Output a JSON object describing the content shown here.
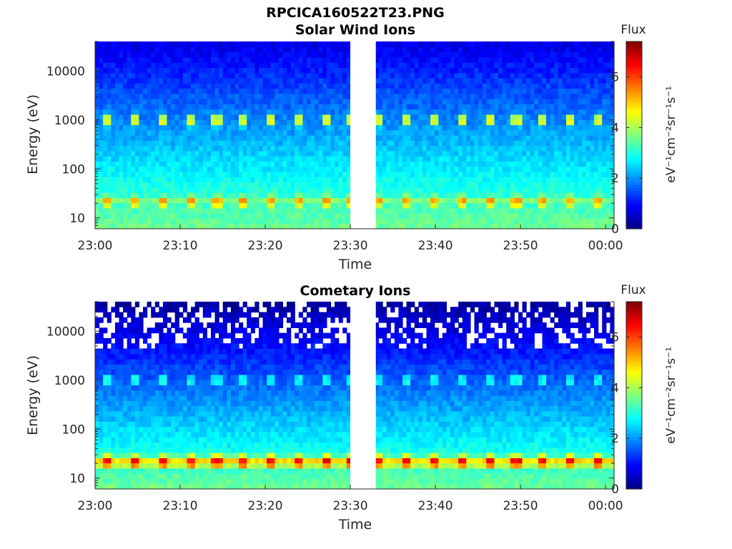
{
  "figure_title": "RPCICA160522T23.PNG",
  "chart_data": [
    {
      "type": "heatmap",
      "title": "Solar Wind Ions",
      "xlabel": "Time",
      "ylabel": "Energy (eV)",
      "y_scale": "log",
      "ylim": [
        6,
        40000
      ],
      "xlim": [
        "23:00",
        "00:01"
      ],
      "x_ticks": [
        "23:00",
        "23:10",
        "23:20",
        "23:30",
        "23:40",
        "23:50",
        "00:00"
      ],
      "y_ticks": [
        "10",
        "100",
        "1000",
        "10000"
      ],
      "data_gap": [
        "23:30",
        "23:33"
      ],
      "pulse_period_min": 3.2,
      "features": [
        {
          "energy_ev": 1000,
          "flux": 4.6,
          "description": "periodic pulses"
        },
        {
          "energy_ev": 22,
          "flux": 5.3,
          "description": "periodic pulses"
        }
      ],
      "colorbar": {
        "label": "Flux",
        "unit": "eV⁻¹cm⁻²sr⁻¹s⁻¹",
        "range": [
          0,
          7.4
        ],
        "ticks": [
          "0",
          "2",
          "4",
          "6"
        ],
        "colormap": "jet"
      }
    },
    {
      "type": "heatmap",
      "title": "Cometary Ions",
      "xlabel": "Time",
      "ylabel": "Energy (eV)",
      "y_scale": "log",
      "ylim": [
        6,
        40000
      ],
      "xlim": [
        "23:00",
        "00:01"
      ],
      "x_ticks": [
        "23:00",
        "23:10",
        "23:20",
        "23:30",
        "23:40",
        "23:50",
        "00:00"
      ],
      "y_ticks": [
        "10",
        "100",
        "1000",
        "10000"
      ],
      "data_gap": [
        "23:30",
        "23:33"
      ],
      "pulse_period_min": 3.2,
      "features": [
        {
          "energy_ev": 1000,
          "flux": 3.0,
          "description": "periodic pulses"
        },
        {
          "energy_ev": 22,
          "flux": 6.5,
          "description": "periodic pulses"
        }
      ],
      "colorbar": {
        "label": "Flux",
        "unit": "eV⁻¹cm⁻²sr⁻¹s⁻¹",
        "range": [
          0,
          7.4
        ],
        "ticks": [
          "0",
          "2",
          "4",
          "6"
        ],
        "colormap": "jet"
      }
    }
  ]
}
